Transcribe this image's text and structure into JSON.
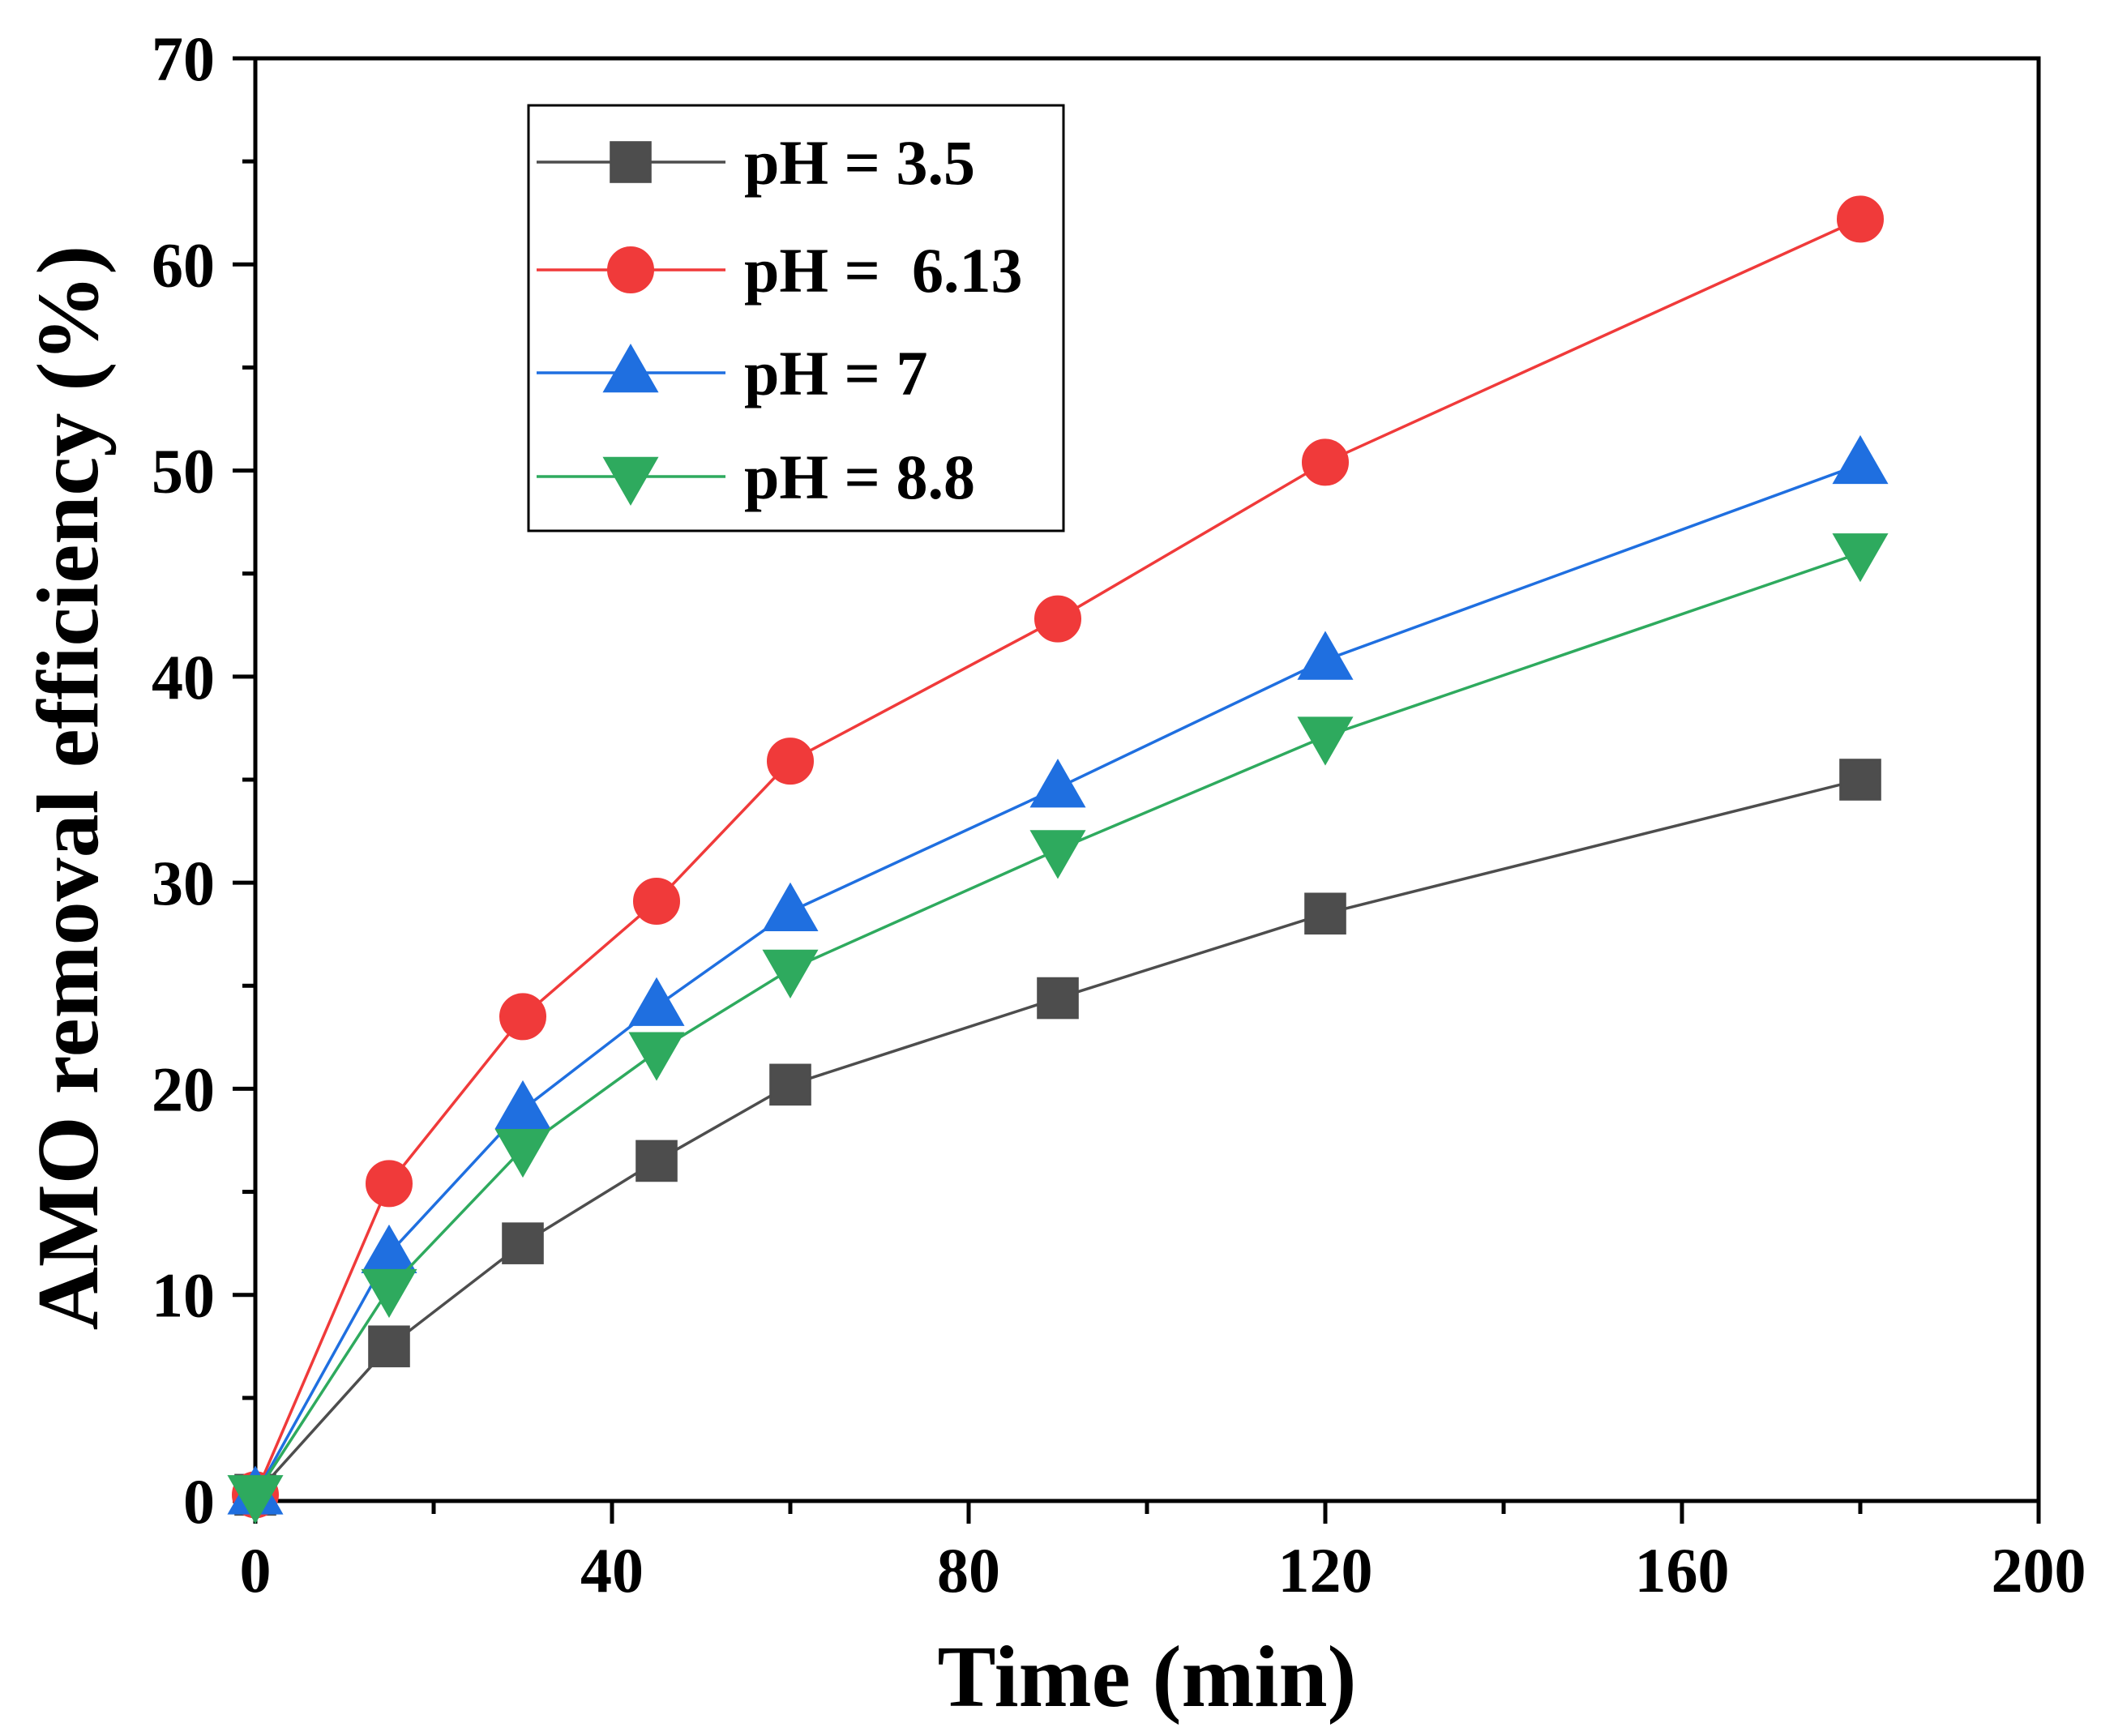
{
  "chart_data": {
    "type": "line",
    "title": "",
    "xlabel": "Time (min)",
    "ylabel": "AMO removal efficiency (%)",
    "xlim": [
      0,
      200
    ],
    "ylim": [
      0,
      70
    ],
    "xticks": [
      0,
      40,
      80,
      120,
      160,
      200
    ],
    "yticks": [
      0,
      10,
      20,
      30,
      40,
      50,
      60,
      70
    ],
    "x": [
      0,
      15,
      30,
      45,
      60,
      90,
      120,
      180
    ],
    "legend_position": "top-left",
    "series": [
      {
        "name": "pH = 3.5",
        "color": "#4d4d4d",
        "marker": "square",
        "values": [
          0.3,
          7.5,
          12.5,
          16.5,
          20.2,
          24.4,
          28.5,
          35.0
        ]
      },
      {
        "name": "pH =  6.13",
        "color": "#f03a3a",
        "marker": "circle",
        "values": [
          0.3,
          15.4,
          23.5,
          29.1,
          35.9,
          42.8,
          50.4,
          62.2
        ]
      },
      {
        "name": "pH = 7",
        "color": "#1f6fe0",
        "marker": "triangle-up",
        "values": [
          0.3,
          12.0,
          19.0,
          24.0,
          28.6,
          34.6,
          40.8,
          50.3
        ]
      },
      {
        "name": "pH = 8.8",
        "color": "#2eaa5e",
        "marker": "triangle-down",
        "values": [
          0.3,
          10.3,
          17.1,
          21.8,
          25.8,
          31.6,
          37.1,
          46.0
        ]
      }
    ]
  }
}
